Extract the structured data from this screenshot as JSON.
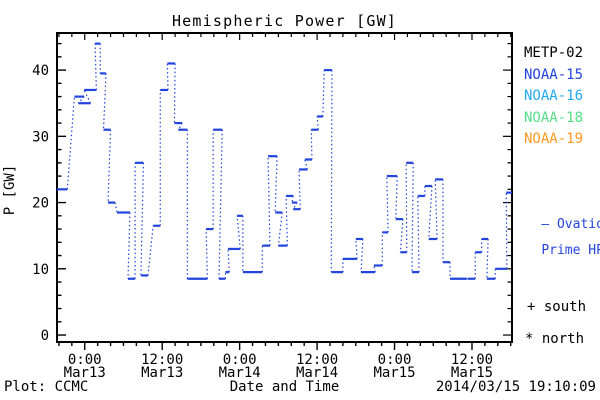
{
  "header": {
    "title": "Hemispheric Power [GW]"
  },
  "footer": {
    "plot_credit": "Plot: CCMC",
    "timestamp": "2014/03/15 19:10:09"
  },
  "annotations": {
    "ovation_line1": "— Ovation",
    "ovation_line2": "Prime HPI",
    "south_marker": "+ south",
    "north_marker": "* north"
  },
  "colors": {
    "frame": "#000000",
    "ovation_blue": "#2244dd",
    "noaa16_cyan": "#22aaee",
    "noaa18_green": "#55dd88",
    "noaa19_orange": "#ff9922",
    "black": "#000000"
  },
  "chart_data": {
    "type": "line",
    "style": "stepped satellite passes: solid horizontal segments joined by dotted connectors",
    "title": "Hemispheric Power [GW]",
    "xlabel": "Date and Time",
    "ylabel": "P [GW]",
    "x_unit": "hours since 2014-03-12 00:00 UT",
    "x_domain": [
      19.7,
      90.2
    ],
    "y_domain": [
      -1.05,
      45.6
    ],
    "ylim_labeled": [
      0,
      40
    ],
    "grid": false,
    "x_major_ticks": [
      {
        "h": 24,
        "time": "0:00",
        "date": "Mar13"
      },
      {
        "h": 36,
        "time": "12:00",
        "date": "Mar13"
      },
      {
        "h": 48,
        "time": "0:00",
        "date": "Mar14"
      },
      {
        "h": 60,
        "time": "12:00",
        "date": "Mar14"
      },
      {
        "h": 72,
        "time": "0:00",
        "date": "Mar15"
      },
      {
        "h": 84,
        "time": "12:00",
        "date": "Mar15"
      }
    ],
    "x_minor_step_hours": 2,
    "y_major_ticks": [
      0,
      10,
      20,
      30,
      40
    ],
    "y_minor_step": 2,
    "legend_position": "right-outside",
    "legend": [
      {
        "label": "METP-02",
        "color": "#000000"
      },
      {
        "label": "NOAA-15",
        "color": "#2244dd"
      },
      {
        "label": "NOAA-16",
        "color": "#22aaee"
      },
      {
        "label": "NOAA-18",
        "color": "#55dd88"
      },
      {
        "label": "NOAA-19",
        "color": "#ff9922"
      }
    ],
    "series": [
      {
        "name": "Ovation Prime HPI",
        "color": "#2244dd",
        "point_format": [
          "h_start",
          "h_end",
          "p_gw"
        ],
        "points": [
          [
            19.7,
            21.3,
            22
          ],
          [
            22.4,
            23.9,
            36
          ],
          [
            23.0,
            24.9,
            35
          ],
          [
            23.9,
            25.8,
            37
          ],
          [
            25.6,
            26.4,
            44
          ],
          [
            26.4,
            27.3,
            39.5
          ],
          [
            26.9,
            28.0,
            31
          ],
          [
            27.6,
            28.7,
            20
          ],
          [
            29.0,
            31.0,
            18.5
          ],
          [
            30.7,
            31.8,
            8.5
          ],
          [
            31.8,
            33.1,
            26
          ],
          [
            32.7,
            33.8,
            9
          ],
          [
            34.6,
            35.7,
            16.5
          ],
          [
            35.7,
            36.9,
            37
          ],
          [
            36.8,
            38.0,
            41
          ],
          [
            37.9,
            39.1,
            32
          ],
          [
            38.5,
            39.9,
            31
          ],
          [
            39.9,
            43.0,
            8.5
          ],
          [
            42.8,
            43.9,
            16
          ],
          [
            43.9,
            45.3,
            31
          ],
          [
            44.8,
            45.8,
            8.5
          ],
          [
            45.8,
            46.4,
            9.5
          ],
          [
            46.2,
            47.3,
            13
          ],
          [
            47.2,
            48.1,
            13
          ],
          [
            47.6,
            48.5,
            18
          ],
          [
            48.5,
            51.5,
            9.5
          ],
          [
            51.5,
            52.7,
            13.5
          ],
          [
            52.4,
            53.8,
            27
          ],
          [
            53.5,
            54.6,
            18.5
          ],
          [
            54.0,
            55.4,
            13.5
          ],
          [
            55.2,
            56.3,
            21
          ],
          [
            56.1,
            56.9,
            20
          ],
          [
            56.3,
            57.4,
            19
          ],
          [
            57.2,
            58.5,
            25
          ],
          [
            58.1,
            59.2,
            26.5
          ],
          [
            59.1,
            60.2,
            31
          ],
          [
            60.0,
            60.9,
            33
          ],
          [
            61.1,
            62.3,
            40
          ],
          [
            62.2,
            64.0,
            9.5
          ],
          [
            64.0,
            66.2,
            11.5
          ],
          [
            66.0,
            67.1,
            14.5
          ],
          [
            66.8,
            69.0,
            9.5
          ],
          [
            68.8,
            70.1,
            10.5
          ],
          [
            70.1,
            71.0,
            15.5
          ],
          [
            70.8,
            72.4,
            24
          ],
          [
            72.2,
            73.3,
            17.5
          ],
          [
            72.9,
            73.9,
            12.5
          ],
          [
            73.8,
            74.9,
            26
          ],
          [
            74.7,
            75.8,
            9.5
          ],
          [
            75.6,
            76.7,
            21
          ],
          [
            76.7,
            77.8,
            22.5
          ],
          [
            77.3,
            78.6,
            14.5
          ],
          [
            78.3,
            79.5,
            23.5
          ],
          [
            79.5,
            80.6,
            11
          ],
          [
            80.6,
            83.2,
            8.5
          ],
          [
            83.4,
            84.5,
            8.5
          ],
          [
            84.5,
            85.5,
            12.5
          ],
          [
            85.5,
            86.5,
            14.5
          ],
          [
            86.3,
            87.6,
            8.5
          ],
          [
            87.6,
            89.4,
            10
          ],
          [
            89.3,
            90.2,
            21.5
          ]
        ]
      }
    ]
  }
}
